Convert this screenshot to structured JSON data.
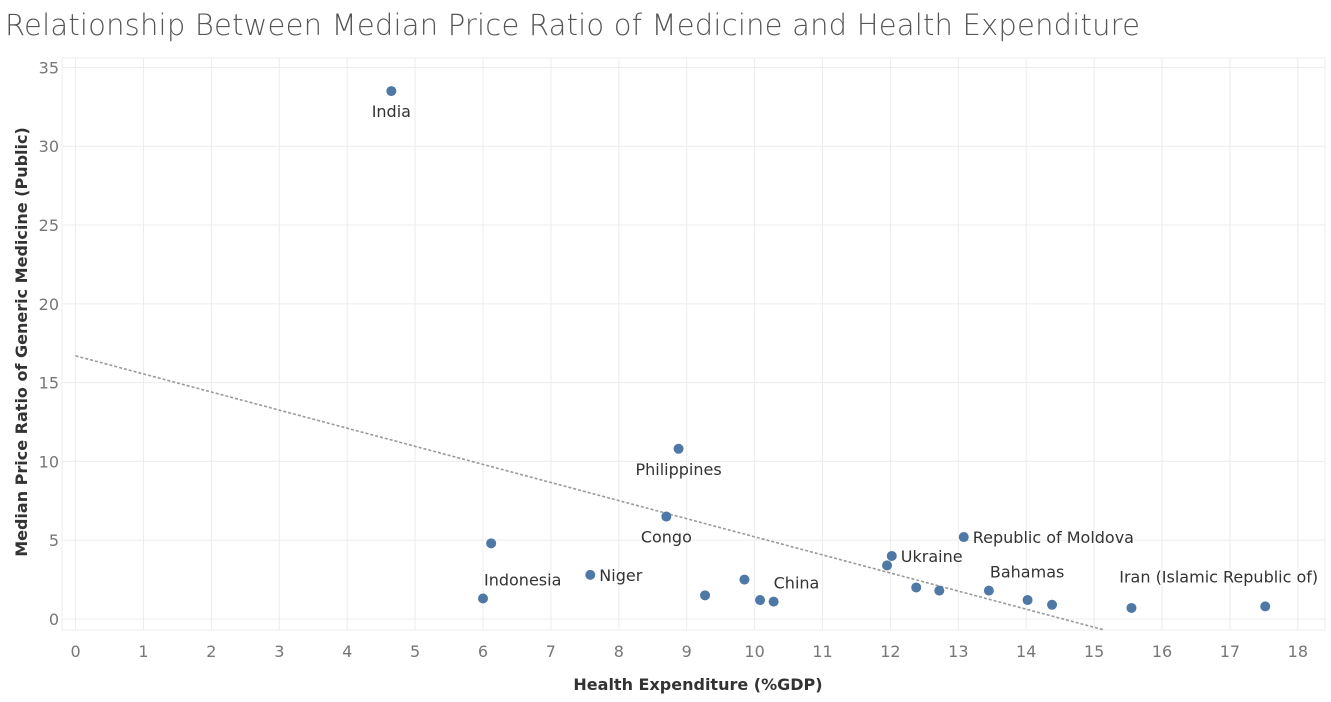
{
  "chart_data": {
    "type": "scatter",
    "title": "Relationship Between Median Price Ratio of Medicine and Health Expenditure",
    "xlabel": "Health Expenditure (%GDP)",
    "ylabel": "Median Price Ratio of Generic Medicine (Public)",
    "xlim": [
      -0.2,
      18.4
    ],
    "ylim": [
      -0.7,
      35.6
    ],
    "x_ticks": [
      0,
      1,
      2,
      3,
      4,
      5,
      6,
      7,
      8,
      9,
      10,
      11,
      12,
      13,
      14,
      15,
      16,
      17,
      18
    ],
    "y_ticks": [
      0,
      5,
      10,
      15,
      20,
      25,
      30,
      35
    ],
    "grid": true,
    "trendline": {
      "style": "dotted",
      "x": [
        0,
        15.15
      ],
      "y": [
        16.7,
        -0.7
      ]
    },
    "points": [
      {
        "x": 4.65,
        "y": 33.5,
        "label": "India"
      },
      {
        "x": 8.88,
        "y": 10.8,
        "label": "Philippines"
      },
      {
        "x": 8.7,
        "y": 6.5,
        "label": "Congo"
      },
      {
        "x": 6.12,
        "y": 4.8,
        "label": ""
      },
      {
        "x": 6.0,
        "y": 1.3,
        "label": "Indonesia"
      },
      {
        "x": 7.58,
        "y": 2.8,
        "label": "Niger"
      },
      {
        "x": 9.27,
        "y": 1.5,
        "label": ""
      },
      {
        "x": 9.85,
        "y": 2.5,
        "label": ""
      },
      {
        "x": 10.08,
        "y": 1.2,
        "label": ""
      },
      {
        "x": 10.28,
        "y": 1.1,
        "label": "China"
      },
      {
        "x": 11.95,
        "y": 3.4,
        "label": ""
      },
      {
        "x": 12.02,
        "y": 4.0,
        "label": "Ukraine"
      },
      {
        "x": 12.38,
        "y": 2.0,
        "label": ""
      },
      {
        "x": 12.72,
        "y": 1.8,
        "label": ""
      },
      {
        "x": 13.08,
        "y": 5.2,
        "label": "Republic of Moldova"
      },
      {
        "x": 13.45,
        "y": 1.8,
        "label": "Bahamas"
      },
      {
        "x": 14.02,
        "y": 1.2,
        "label": ""
      },
      {
        "x": 14.38,
        "y": 0.9,
        "label": ""
      },
      {
        "x": 15.55,
        "y": 0.7,
        "label": ""
      },
      {
        "x": 17.52,
        "y": 0.8,
        "label": "Iran (Islamic Republic of)"
      }
    ],
    "colors": {
      "point": "#4e79a7",
      "trendline": "#9a9a9a",
      "grid": "#ececec",
      "tick": "#777777",
      "axis_title": "#333333"
    }
  }
}
